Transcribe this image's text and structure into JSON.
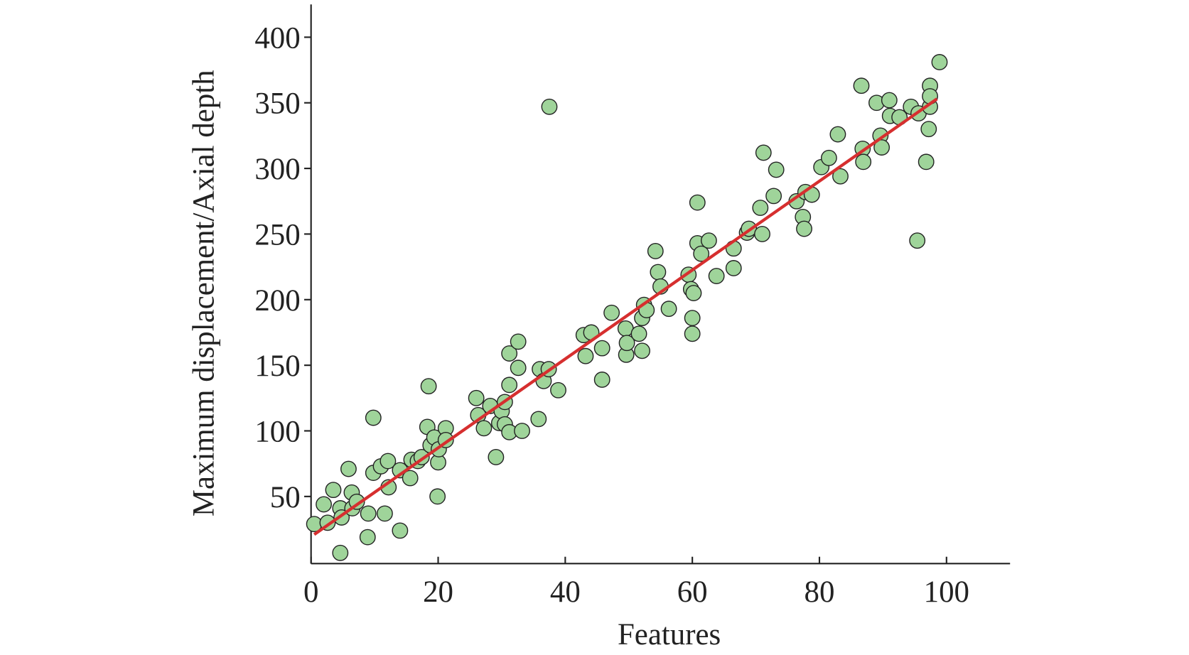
{
  "chart_data": {
    "type": "scatter",
    "xlabel": "Features",
    "ylabel": "Maximum displacement/Axial depth",
    "xlim": [
      0,
      110
    ],
    "ylim": [
      0,
      425
    ],
    "xticks": [
      0,
      20,
      40,
      60,
      80,
      100
    ],
    "yticks": [
      50,
      100,
      150,
      200,
      250,
      300,
      350,
      400
    ],
    "color": "#9fd49a",
    "x": [
      0.5,
      2,
      2.6,
      3.5,
      4.6,
      4.8,
      4.6,
      5.9,
      6.4,
      6.5,
      7.2,
      8.9,
      9,
      9.8,
      9.8,
      11,
      11.6,
      12.1,
      12.2,
      14,
      14,
      15.6,
      15.8,
      16.8,
      17.4,
      18.5,
      18.3,
      18.8,
      19.4,
      19.9,
      20,
      20.1,
      21.2,
      21.2,
      26,
      26.3,
      27.2,
      28.2,
      29.1,
      29.6,
      30,
      30.5,
      30.5,
      31.2,
      31.2,
      31.2,
      32.6,
      32.6,
      33.2,
      35.8,
      36,
      36.6,
      37.4,
      37.5,
      38.9,
      42.9,
      43.2,
      44.1,
      45.8,
      45.8,
      47.3,
      49.5,
      49.6,
      49.7,
      51.6,
      52.1,
      52.1,
      52.4,
      52.8,
      54.2,
      54.6,
      55,
      56.3,
      59.4,
      59.8,
      60,
      60,
      60.2,
      60.8,
      60.8,
      61.4,
      62.6,
      63.8,
      66.5,
      66.5,
      68.6,
      68.9,
      70.7,
      71,
      71.2,
      72.8,
      73.2,
      76.4,
      77.4,
      77.6,
      77.8,
      78.8,
      80.3,
      81.5,
      82.9,
      83.3,
      86.6,
      86.8,
      86.9,
      89,
      89.6,
      89.8,
      91,
      91.1,
      92.6,
      94.4,
      95.4,
      95.6,
      96.8,
      97.2,
      97.4,
      97.4,
      97.4,
      98.9
    ],
    "values": [
      29,
      44,
      30,
      55,
      41,
      34,
      7,
      71,
      53,
      41,
      46,
      19,
      37,
      110,
      68,
      73,
      37,
      77,
      57,
      24,
      70,
      64,
      78,
      77,
      80,
      134,
      103,
      89,
      95,
      50,
      76,
      86,
      102,
      93,
      125,
      112,
      102,
      119,
      80,
      106,
      115,
      122,
      105,
      159,
      135,
      99,
      168,
      148,
      100,
      109,
      147,
      138,
      147,
      347,
      131,
      173,
      157,
      175,
      163,
      139,
      190,
      178,
      158,
      167,
      174,
      161,
      186,
      196,
      192,
      237,
      221,
      210,
      193,
      219,
      208,
      186,
      174,
      205,
      274,
      243,
      235,
      245,
      218,
      224,
      239,
      251,
      254,
      270,
      250,
      312,
      279,
      299,
      275,
      263,
      254,
      282,
      280,
      301,
      308,
      326,
      294,
      363,
      315,
      305,
      350,
      325,
      316,
      352,
      340,
      339,
      347,
      245,
      342,
      305,
      330,
      363,
      347,
      355,
      381
    ],
    "fit": {
      "x": [
        0.5,
        98.5
      ],
      "y": [
        21,
        353
      ],
      "color": "#d62f2f"
    }
  }
}
